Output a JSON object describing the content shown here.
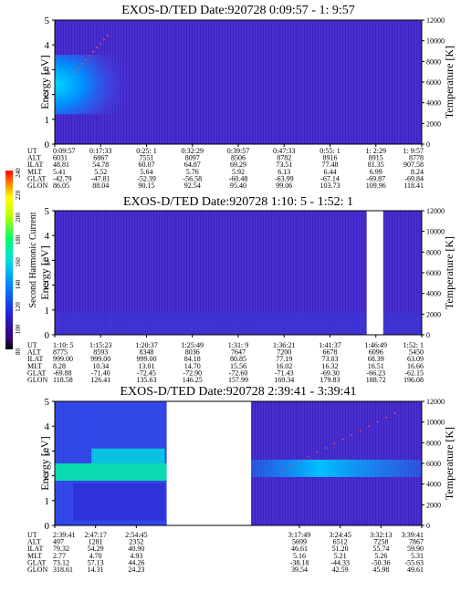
{
  "figure": {
    "colorbar": {
      "label": "Second Harmonic Current",
      "ticks": [
        "80",
        "100",
        "120",
        "140",
        "160",
        "180",
        "200",
        "220",
        "240"
      ]
    }
  },
  "chart_data": [
    {
      "type": "heatmap",
      "title": "EXOS-D/TED   Date:920728  0:09:57 - 1: 9:57",
      "ylabel": "Energy [eV]",
      "y2label": "Temperature [K]",
      "ylim": [
        0,
        5
      ],
      "y2lim": [
        0,
        12000
      ],
      "yticks": [
        "0",
        "1",
        "2",
        "3",
        "4",
        "5"
      ],
      "y2ticks": [
        "0",
        "2000",
        "4000",
        "6000",
        "8000",
        "10000",
        "12000"
      ],
      "row_labels": [
        "UT",
        "ALT",
        "ILAT",
        "MLT",
        "GLAT",
        "GLON"
      ],
      "columns": [
        [
          "0:09:57",
          "6031",
          "48.81",
          "5.41",
          "-42.79",
          "86.05"
        ],
        [
          "0:17:33",
          "6867",
          "54.78",
          "5.52",
          "-47.81",
          "88.04"
        ],
        [
          "0:25: 1",
          "7551",
          "60.07",
          "5.64",
          "-52.39",
          "90.15"
        ],
        [
          "0:32:29",
          "8097",
          "64.87",
          "5.76",
          "-56.58",
          "92.54"
        ],
        [
          "0:39:57",
          "8506",
          "69.29",
          "5.92",
          "-60.48",
          "95.40"
        ],
        [
          "0:47:33",
          "8782",
          "73.51",
          "6.13",
          "-63.99",
          "99.06"
        ],
        [
          "0:55: 1",
          "8916",
          "77.48",
          "6.44",
          "-67.14",
          "103.73"
        ],
        [
          "1: 2:29",
          "8915",
          "81.35",
          "6.99",
          "-69.87",
          "109.96"
        ],
        [
          "1: 9:57",
          "8778",
          "907.58",
          "8.24",
          "-69.84",
          "118.41"
        ]
      ],
      "data_gaps": []
    },
    {
      "type": "heatmap",
      "title": "EXOS-D/TED   Date:920728   1:10: 5 - 1:52: 1",
      "ylabel": "Energy [eV]",
      "y2label": "Temperature [K]",
      "ylim": [
        0,
        5
      ],
      "y2lim": [
        0,
        12000
      ],
      "yticks": [
        "0",
        "1",
        "2",
        "3",
        "4",
        "5"
      ],
      "y2ticks": [
        "0",
        "2000",
        "4000",
        "6000",
        "8000",
        "10000",
        "12000"
      ],
      "row_labels": [
        "UT",
        "ALT",
        "ILAT",
        "MLT",
        "GLAT",
        "GLON"
      ],
      "columns": [
        [
          "1:10: 5",
          "8775",
          "999.00",
          "8.28",
          "-69.88",
          "118.58"
        ],
        [
          "1:15:23",
          "8593",
          "999.00",
          "10.34",
          "-71.40",
          "126.41"
        ],
        [
          "1:20:37",
          "8348",
          "999.00",
          "13.01",
          "-72.45",
          "135.63"
        ],
        [
          "1:25:49",
          "8036",
          "84.18",
          "14.70",
          "-72.90",
          "146.25"
        ],
        [
          "1:31: 9",
          "7647",
          "80.85",
          "15.56",
          "-72.60",
          "157.99"
        ],
        [
          "1:36:21",
          "7200",
          "77.19",
          "16.02",
          "-71.43",
          "169.34"
        ],
        [
          "1:41:37",
          "6678",
          "73.03",
          "16.32",
          "-69.30",
          "179.83"
        ],
        [
          "1:46:49",
          "6096",
          "68.39",
          "16.51",
          "-66.23",
          "188.72"
        ],
        [
          "1:52: 1",
          "5450",
          "63.09",
          "16.66",
          "-62.15",
          "196.08"
        ]
      ],
      "data_gaps": [
        [
          0.85,
          0.895
        ]
      ]
    },
    {
      "type": "heatmap",
      "title": "EXOS-D/TED   Date:920728   2:39:41 - 3:39:41",
      "ylabel": "Energy [eV]",
      "y2label": "Temperature [K]",
      "ylim": [
        0,
        5
      ],
      "y2lim": [
        0,
        12000
      ],
      "yticks": [
        "0",
        "1",
        "2",
        "3",
        "4",
        "5"
      ],
      "y2ticks": [
        "0",
        "2000",
        "4000",
        "6000",
        "8000",
        "10000",
        "12000"
      ],
      "row_labels": [
        "UT",
        "ALT",
        "ILAT",
        "MLT",
        "GLAT",
        "GLON"
      ],
      "columns": [
        [
          "2:39:41",
          "497",
          "79.32",
          "2.77",
          "73.12",
          "318.61"
        ],
        [
          "2:47:17",
          "1281",
          "54.29",
          "4.70",
          "57.13",
          "14.31"
        ],
        [
          "2:54:45",
          "2352",
          "40.90",
          "4.93",
          "44.26",
          "24.23"
        ],
        [
          "",
          "",
          "",
          "",
          "",
          ""
        ],
        [
          "",
          "",
          "",
          "",
          "",
          ""
        ],
        [
          "",
          "",
          "",
          "",
          "",
          ""
        ],
        [
          "3:17:49",
          "5699",
          "46.61",
          "5.16",
          "-38.18",
          "39.54"
        ],
        [
          "3:24:45",
          "6512",
          "51.20",
          "5.21",
          "-44.33",
          "42.59"
        ],
        [
          "3:32:13",
          "7258",
          "55.74",
          "5.26",
          "-50.36",
          "45.98"
        ],
        [
          "3:39:41",
          "7867",
          "59.90",
          "5.31",
          "-55.63",
          "49.61"
        ]
      ],
      "data_gaps": [
        [
          0.305,
          0.535
        ]
      ]
    }
  ]
}
